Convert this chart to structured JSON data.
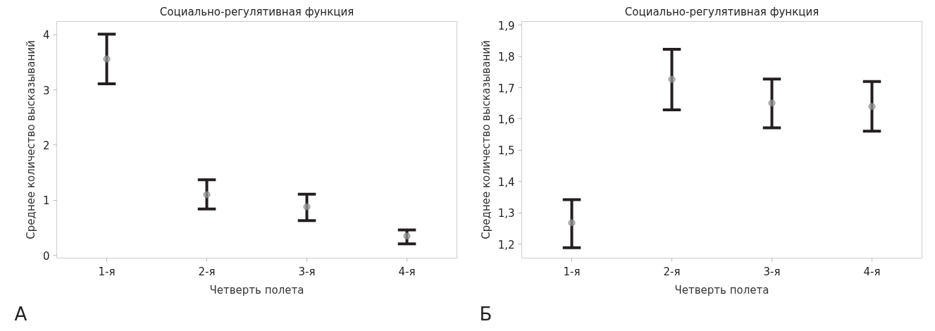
{
  "chart_data": [
    {
      "type": "scatter",
      "title": "Социально-регулятивная функция",
      "xlabel": "Четверть полета",
      "ylabel": "Среднее количество высказываний",
      "categories": [
        "1-я",
        "2-я",
        "3-я",
        "4-я"
      ],
      "series": [
        {
          "color": "#a0a0a0",
          "values": [
            3.56,
            1.1,
            0.88,
            0.35
          ],
          "errors": [
            [
              3.11,
              4.01
            ],
            [
              0.84,
              1.37
            ],
            [
              0.63,
              1.11
            ],
            [
              0.21,
              0.46
            ]
          ]
        }
      ],
      "ylim": [
        -0.05,
        4.24
      ],
      "yticks": [
        0,
        1,
        2,
        3,
        4
      ],
      "grid": false,
      "marker": "circle",
      "annotations": [
        "А"
      ]
    },
    {
      "type": "scatter",
      "title": "Социально-регулятивная функция",
      "xlabel": "Четверть полета",
      "ylabel": "Среднее количество высказываний",
      "categories": [
        "1-я",
        "2-я",
        "3-я",
        "4-я"
      ],
      "series": [
        {
          "color": "#a0a0a0",
          "values": [
            1.268,
            1.727,
            1.651,
            1.64
          ],
          "errors": [
            [
              1.188,
              1.342
            ],
            [
              1.629,
              1.823
            ],
            [
              1.572,
              1.728
            ],
            [
              1.561,
              1.72
            ]
          ]
        }
      ],
      "ylim": [
        1.155,
        1.912
      ],
      "yticks": [
        {
          "value": 1.2,
          "label": "1,2"
        },
        {
          "value": 1.3,
          "label": "1,3"
        },
        {
          "value": 1.4,
          "label": "1,4"
        },
        {
          "value": 1.5,
          "label": "1,5"
        },
        {
          "value": 1.6,
          "label": "1,6"
        },
        {
          "value": 1.7,
          "label": "1,7"
        },
        {
          "value": 1.8,
          "label": "1,8"
        },
        {
          "value": 1.9,
          "label": "1,9"
        }
      ],
      "grid": false,
      "marker": "circle",
      "annotations": [
        "Б"
      ]
    }
  ]
}
